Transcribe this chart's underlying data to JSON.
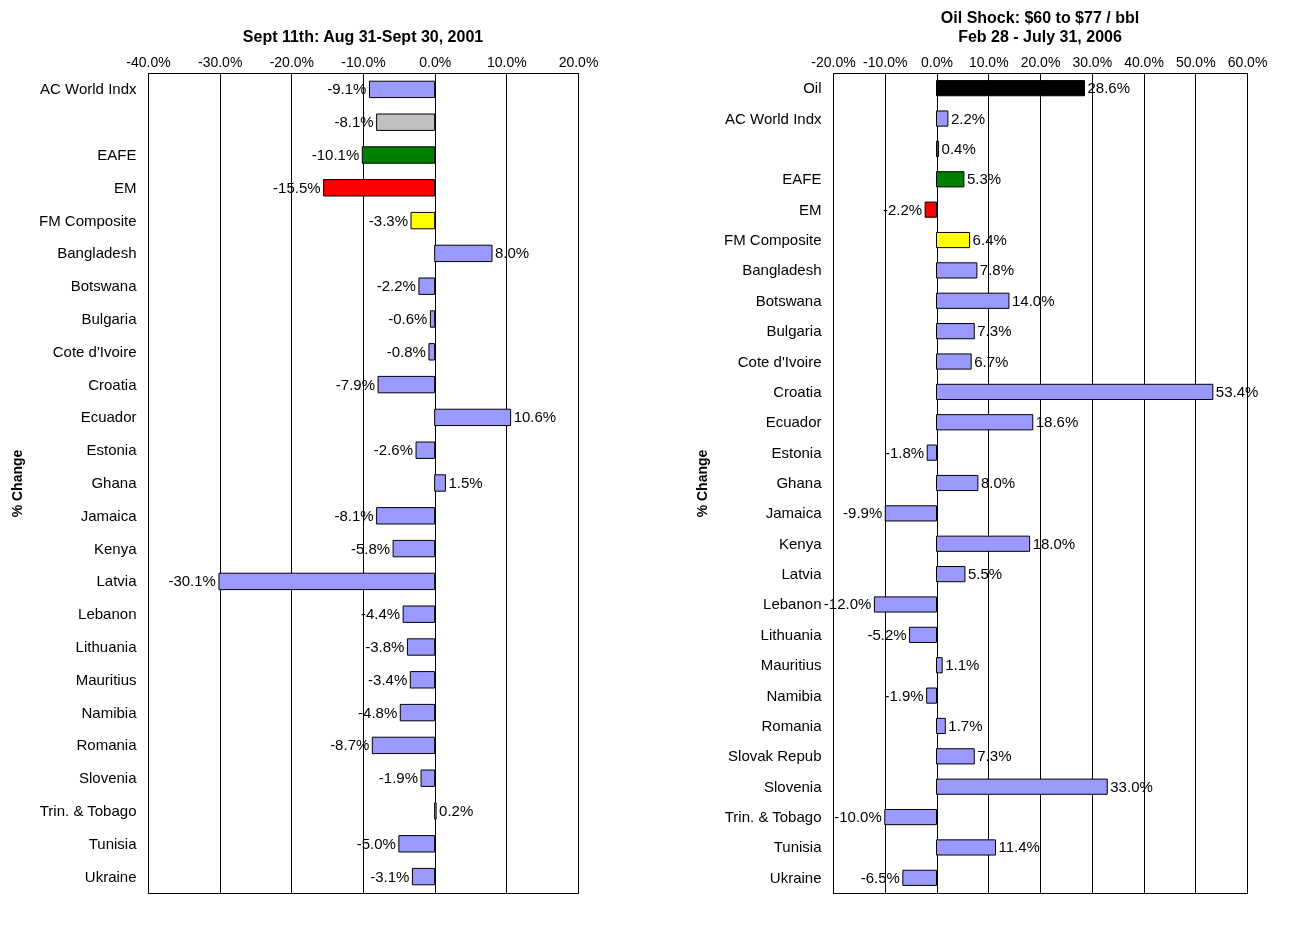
{
  "chart_data": [
    {
      "type": "bar",
      "orientation": "horizontal",
      "title": "Sept 11th: Aug 31-Sept 30, 2001",
      "ylabel": "% Change",
      "grid": "x",
      "categories": [
        "AC World Indx",
        null,
        "EAFE",
        "EM",
        "FM Composite",
        "Bangladesh",
        "Botswana",
        "Bulgaria",
        "Cote d'Ivoire",
        "Croatia",
        "Ecuador",
        "Estonia",
        "Ghana",
        "Jamaica",
        "Kenya",
        "Latvia",
        "Lebanon",
        "Lithuania",
        "Mauritius",
        "Namibia",
        "Romania",
        "Slovenia",
        "Trin. & Tobago",
        "Tunisia",
        "Ukraine"
      ],
      "values": [
        -9.1,
        -8.1,
        -10.1,
        -15.5,
        -3.3,
        8.0,
        -2.2,
        -0.6,
        -0.8,
        -7.9,
        10.6,
        -2.6,
        1.5,
        -8.1,
        -5.8,
        -30.1,
        -4.4,
        -3.8,
        -3.4,
        -4.8,
        -8.7,
        -1.9,
        0.2,
        -5.0,
        -3.1
      ],
      "value_labels": [
        "-9.1%",
        "-8.1%",
        "-10.1%",
        "-15.5%",
        "-3.3%",
        "8.0%",
        "-2.2%",
        "-0.6%",
        "-0.8%",
        "-7.9%",
        "10.6%",
        "-2.6%",
        "1.5%",
        "-8.1%",
        "-5.8%",
        "-30.1%",
        "-4.4%",
        "-3.8%",
        "-3.4%",
        "-4.8%",
        "-8.7%",
        "-1.9%",
        "0.2%",
        "-5.0%",
        "-3.1%"
      ],
      "colors": [
        "#9999ff",
        "#c0c0c0",
        "#008000",
        "#ff0000",
        "#ffff00",
        "#9999ff",
        "#9999ff",
        "#9999ff",
        "#9999ff",
        "#9999ff",
        "#9999ff",
        "#9999ff",
        "#9999ff",
        "#9999ff",
        "#9999ff",
        "#9999ff",
        "#9999ff",
        "#9999ff",
        "#9999ff",
        "#9999ff",
        "#9999ff",
        "#9999ff",
        "#9999ff",
        "#9999ff",
        "#9999ff"
      ],
      "xlim": [
        -40,
        20
      ],
      "xticks": [
        {
          "value": -40,
          "label": "-40.0%"
        },
        {
          "value": -30,
          "label": "-30.0%"
        },
        {
          "value": -20,
          "label": "-20.0%"
        },
        {
          "value": -10,
          "label": "-10.0%"
        },
        {
          "value": 0,
          "label": "0.0%"
        },
        {
          "value": 10,
          "label": "10.0%"
        },
        {
          "value": 20,
          "label": "20.0%"
        }
      ]
    },
    {
      "type": "bar",
      "orientation": "horizontal",
      "title": "Oil Shock: $60 to $77 / bbl",
      "subtitle": "Feb 28 - July 31, 2006",
      "ylabel": "% Change",
      "grid": "x",
      "categories": [
        "Oil",
        "AC World Indx",
        null,
        "EAFE",
        "EM",
        "FM Composite",
        "Bangladesh",
        "Botswana",
        "Bulgaria",
        "Cote d'Ivoire",
        "Croatia",
        "Ecuador",
        "Estonia",
        "Ghana",
        "Jamaica",
        "Kenya",
        "Latvia",
        "Lebanon",
        "Lithuania",
        "Mauritius",
        "Namibia",
        "Romania",
        "Slovak Repub",
        "Slovenia",
        "Trin. & Tobago",
        "Tunisia",
        "Ukraine"
      ],
      "values": [
        28.6,
        2.2,
        0.4,
        5.3,
        -2.2,
        6.4,
        7.8,
        14.0,
        7.3,
        6.7,
        53.4,
        18.6,
        -1.8,
        8.0,
        -9.9,
        18.0,
        5.5,
        -12.0,
        -5.2,
        1.1,
        -1.9,
        1.7,
        7.3,
        33.0,
        -10.0,
        11.4,
        -6.5
      ],
      "value_labels": [
        "28.6%",
        "2.2%",
        "0.4%",
        "5.3%",
        "-2.2%",
        "6.4%",
        "7.8%",
        "14.0%",
        "7.3%",
        "6.7%",
        "53.4%",
        "18.6%",
        "-1.8%",
        "8.0%",
        "-9.9%",
        "18.0%",
        "5.5%",
        "-12.0%",
        "-5.2%",
        "1.1%",
        "-1.9%",
        "1.7%",
        "7.3%",
        "33.0%",
        "-10.0%",
        "11.4%",
        "-6.5%"
      ],
      "colors": [
        "#000000",
        "#9999ff",
        "#008000",
        "#008000",
        "#ff0000",
        "#ffff00",
        "#9999ff",
        "#9999ff",
        "#9999ff",
        "#9999ff",
        "#9999ff",
        "#9999ff",
        "#9999ff",
        "#9999ff",
        "#9999ff",
        "#9999ff",
        "#9999ff",
        "#9999ff",
        "#9999ff",
        "#9999ff",
        "#9999ff",
        "#9999ff",
        "#9999ff",
        "#9999ff",
        "#9999ff",
        "#9999ff",
        "#9999ff"
      ],
      "xlim": [
        -20,
        60
      ],
      "xticks": [
        {
          "value": -20,
          "label": "-20.0%"
        },
        {
          "value": -10,
          "label": "-10.0%"
        },
        {
          "value": 0,
          "label": "0.0%"
        },
        {
          "value": 10,
          "label": "10.0%"
        },
        {
          "value": 20,
          "label": "20.0%"
        },
        {
          "value": 30,
          "label": "30.0%"
        },
        {
          "value": 40,
          "label": "40.0%"
        },
        {
          "value": 50,
          "label": "50.0%"
        },
        {
          "value": 60,
          "label": "60.0%"
        }
      ]
    }
  ]
}
